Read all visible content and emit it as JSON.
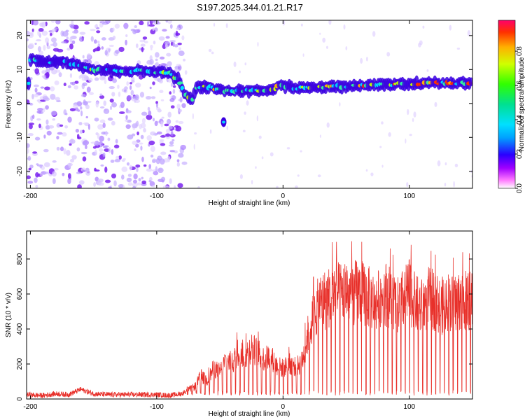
{
  "title": "S197.2025.344.01.21.R17",
  "colors": {
    "spec_band": "#4a00e6",
    "spec_scatter": "#b388ff",
    "snr_line": "#e8302a",
    "frame": "#000000"
  },
  "chart_data": [
    {
      "type": "heatmap",
      "name": "spectrogram",
      "xlabel": "Height of straight line (km)",
      "ylabel": "Frequency (Hz)",
      "xlim": [
        -203,
        150
      ],
      "ylim": [
        -25,
        24.5
      ],
      "xticks": [
        -200,
        -100,
        0,
        100
      ],
      "yticks": [
        -20,
        -10,
        0,
        10,
        20
      ],
      "ridge": [
        {
          "x": -200,
          "y": 13
        },
        {
          "x": -185,
          "y": 12
        },
        {
          "x": -175,
          "y": 12.5
        },
        {
          "x": -160,
          "y": 11
        },
        {
          "x": -150,
          "y": 10
        },
        {
          "x": -130,
          "y": 9.5
        },
        {
          "x": -110,
          "y": 9.5
        },
        {
          "x": -90,
          "y": 9
        },
        {
          "x": -83,
          "y": 7
        },
        {
          "x": -78,
          "y": 3
        },
        {
          "x": -72,
          "y": 1
        },
        {
          "x": -68,
          "y": 5
        },
        {
          "x": -60,
          "y": 5
        },
        {
          "x": -50,
          "y": 4
        },
        {
          "x": -40,
          "y": 3.5
        },
        {
          "x": -20,
          "y": 4
        },
        {
          "x": -8,
          "y": 4
        },
        {
          "x": -2,
          "y": 5.5
        },
        {
          "x": 10,
          "y": 4.5
        },
        {
          "x": 40,
          "y": 5
        },
        {
          "x": 80,
          "y": 5.5
        },
        {
          "x": 110,
          "y": 6
        },
        {
          "x": 150,
          "y": 6
        }
      ],
      "colorbar": {
        "label": "Normalized spectral amplitude",
        "range": [
          0,
          0.98
        ],
        "ticks": [
          0.0,
          0.2,
          0.4,
          0.6,
          0.8
        ]
      }
    },
    {
      "type": "line",
      "name": "snr",
      "xlabel": "Height of straight line (km)",
      "ylabel": "SNR (10 * v/v)",
      "xlim": [
        -203,
        150
      ],
      "ylim": [
        0,
        960
      ],
      "xticks": [
        -200,
        -100,
        0,
        100
      ],
      "yticks": [
        0,
        200,
        400,
        600,
        800
      ],
      "series": [
        {
          "name": "SNR",
          "x": [
            -203,
            -190,
            -180,
            -170,
            -165,
            -160,
            -150,
            -140,
            -120,
            -100,
            -90,
            -80,
            -75,
            -70,
            -65,
            -60,
            -55,
            -50,
            -45,
            -40,
            -35,
            -30,
            -25,
            -20,
            -15,
            -10,
            -5,
            0,
            5,
            10,
            15,
            20,
            25,
            30,
            35,
            40,
            45,
            50,
            55,
            60,
            65,
            70,
            75,
            80,
            85,
            90,
            95,
            100,
            105,
            110,
            115,
            120,
            125,
            130,
            135,
            140,
            145,
            150
          ],
          "y": [
            25,
            20,
            30,
            25,
            40,
            55,
            30,
            25,
            25,
            25,
            20,
            30,
            60,
            80,
            150,
            120,
            200,
            180,
            260,
            230,
            320,
            280,
            340,
            300,
            260,
            280,
            220,
            200,
            230,
            210,
            240,
            430,
            560,
            640,
            650,
            700,
            680,
            720,
            690,
            700,
            680,
            650,
            640,
            700,
            660,
            600,
            650,
            700,
            620,
            600,
            660,
            640,
            600,
            640,
            620,
            650,
            640,
            640
          ]
        }
      ]
    }
  ]
}
